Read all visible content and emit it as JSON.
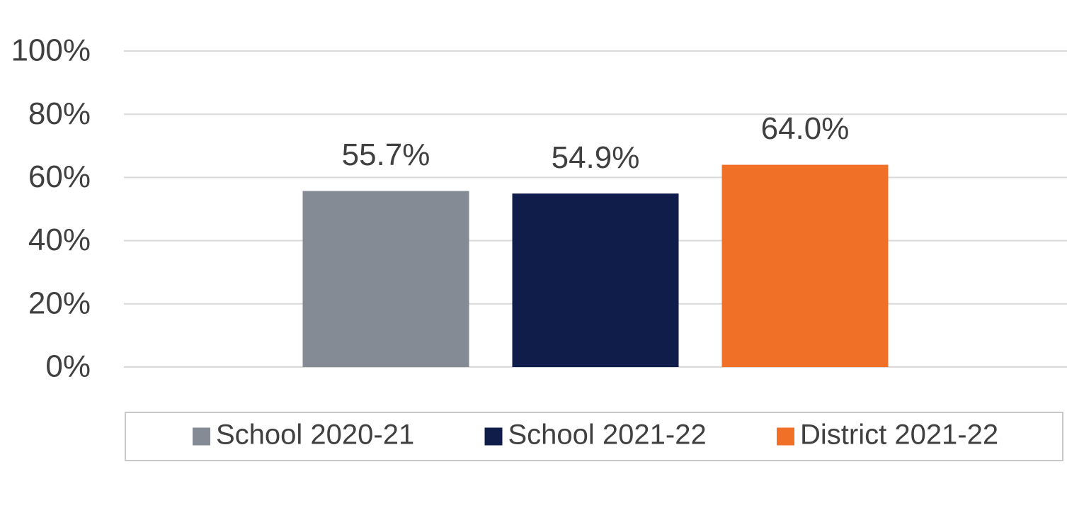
{
  "chart_data": {
    "type": "bar",
    "categories": [
      null
    ],
    "series": [
      {
        "name": "School 2020-21",
        "color": "#858b94",
        "values": [
          55.7
        ],
        "value_labels": [
          "55.7%"
        ]
      },
      {
        "name": "School 2021-22",
        "color": "#101c4a",
        "values": [
          54.9
        ],
        "value_labels": [
          "54.9%"
        ]
      },
      {
        "name": "District 2021-22",
        "color": "#f07027",
        "values": [
          64.0
        ],
        "value_labels": [
          "64.0%"
        ]
      }
    ],
    "ylim": [
      0,
      100
    ],
    "yticks": [
      {
        "value": 0,
        "label": "0%"
      },
      {
        "value": 20,
        "label": "20%"
      },
      {
        "value": 40,
        "label": "40%"
      },
      {
        "value": 60,
        "label": "60%"
      },
      {
        "value": 80,
        "label": "80%"
      },
      {
        "value": 100,
        "label": "100%"
      }
    ],
    "grid": true,
    "legend": "bottom"
  }
}
